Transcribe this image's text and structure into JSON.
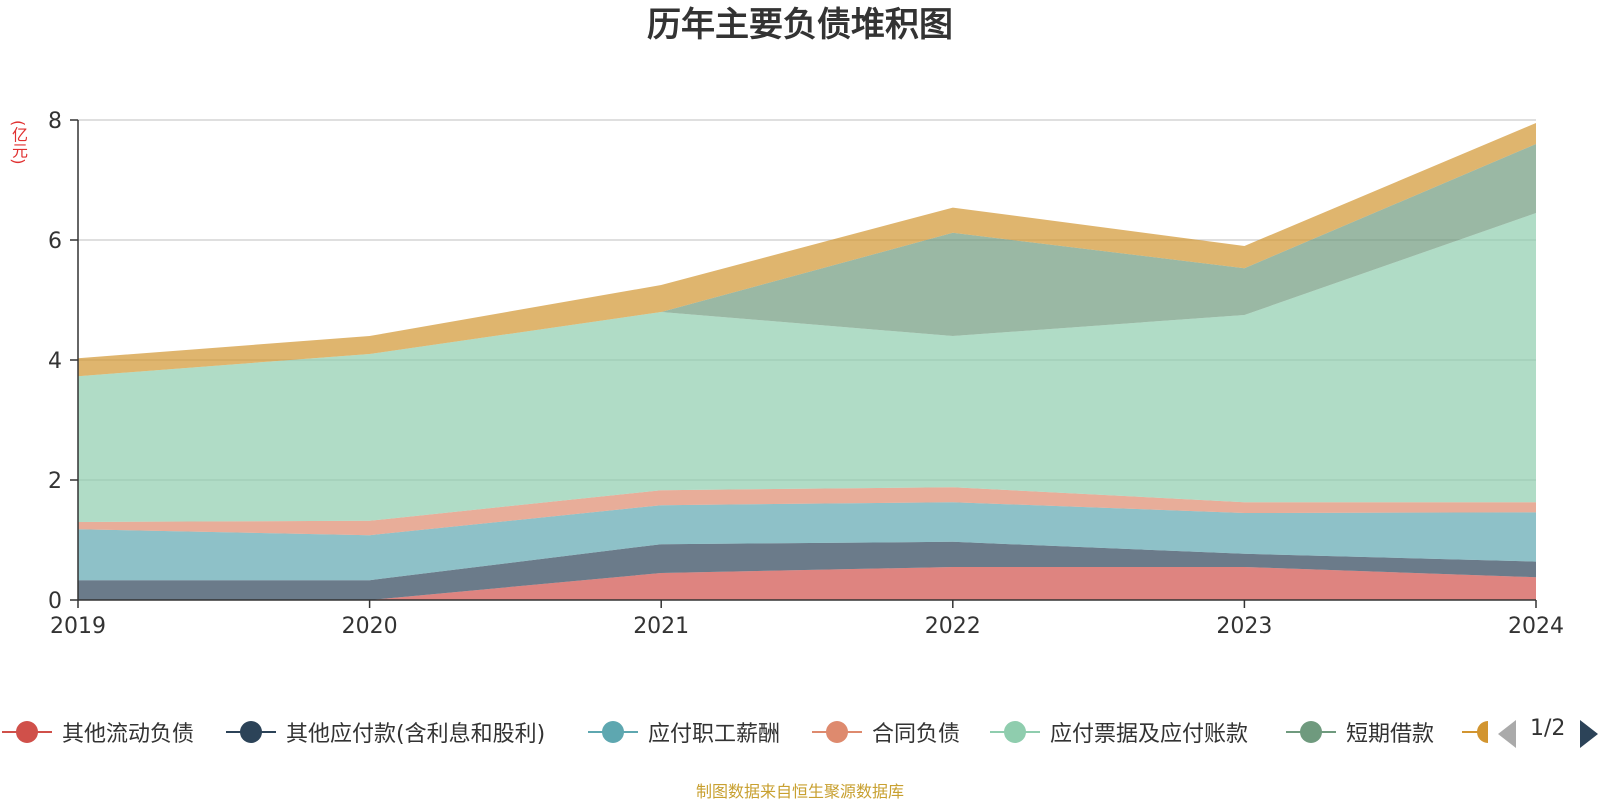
{
  "chart_data": {
    "type": "area",
    "stacked": true,
    "title": "历年主要负债堆积图",
    "ylabel": "(亿元)",
    "x": [
      "2019",
      "2020",
      "2021",
      "2022",
      "2023",
      "2024"
    ],
    "ylim": [
      0,
      8
    ],
    "yticks": [
      "0",
      "2",
      "4",
      "6",
      "8"
    ],
    "grid": true,
    "legend_position": "bottom",
    "series": [
      {
        "name": "其他流动负债",
        "color": "#d0504a",
        "values": [
          0.0,
          0.0,
          0.45,
          0.55,
          0.55,
          0.38
        ]
      },
      {
        "name": "其他应付款(含利息和股利)",
        "color": "#2c4358",
        "values": [
          0.33,
          0.33,
          0.48,
          0.42,
          0.22,
          0.26
        ]
      },
      {
        "name": "应付职工薪酬",
        "color": "#5ea7b0",
        "values": [
          0.85,
          0.75,
          0.65,
          0.66,
          0.68,
          0.82
        ]
      },
      {
        "name": "合同负债",
        "color": "#de8a6e",
        "values": [
          0.12,
          0.24,
          0.25,
          0.25,
          0.18,
          0.17
        ]
      },
      {
        "name": "应付票据及应付账款",
        "color": "#8fcdae",
        "values": [
          2.43,
          2.78,
          2.97,
          2.52,
          3.12,
          4.82
        ]
      },
      {
        "name": "短期借款",
        "color": "#6f9a7e",
        "values": [
          0.0,
          0.0,
          0.0,
          1.72,
          0.78,
          1.15
        ]
      },
      {
        "name": "",
        "color": "#d29530",
        "values": [
          0.3,
          0.3,
          0.45,
          0.42,
          0.37,
          0.35
        ]
      }
    ]
  },
  "legend": {
    "items": [
      "其他流动负债",
      "其他应付款(含利息和股利)",
      "应付职工薪酬",
      "合同负债",
      "应付票据及应付账款",
      "短期借款"
    ],
    "page": "1/2"
  },
  "footer": "制图数据来自恒生聚源数据库"
}
